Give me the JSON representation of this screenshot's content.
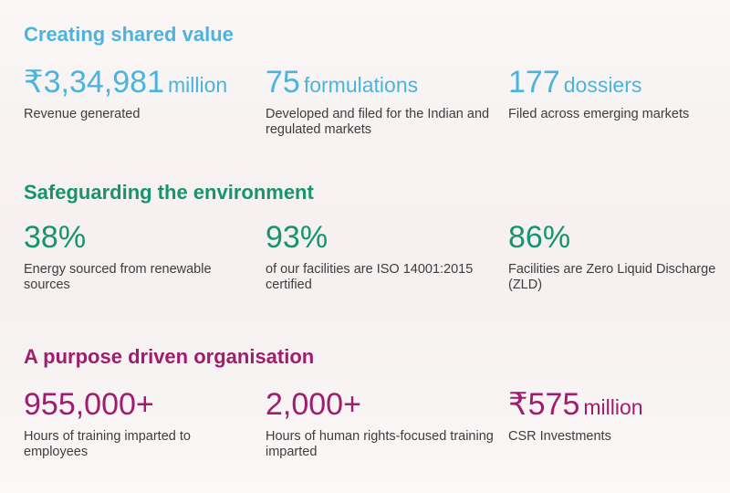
{
  "colors": {
    "shared_value": "#4bb4de",
    "environment": "#14956f",
    "purpose": "#a01c6e",
    "body_text": "#3d3d3d"
  },
  "sections": [
    {
      "title": "Creating shared value",
      "stats": [
        {
          "value": "₹3,34,981",
          "unit": "million",
          "desc": "Revenue generated"
        },
        {
          "value": "75",
          "unit": "formulations",
          "desc": "Developed and filed for the Indian and regulated markets"
        },
        {
          "value": "177",
          "unit": "dossiers",
          "desc": "Filed across emerging markets"
        }
      ]
    },
    {
      "title": "Safeguarding the environment",
      "stats": [
        {
          "value": "38%",
          "unit": "",
          "desc": "Energy sourced from renewable sources"
        },
        {
          "value": "93%",
          "unit": "",
          "desc": "of our facilities are ISO 14001:2015 certified"
        },
        {
          "value": "86%",
          "unit": "",
          "desc": "Facilities are Zero Liquid Discharge (ZLD)"
        }
      ]
    },
    {
      "title": "A purpose driven organisation",
      "stats": [
        {
          "value": "955,000+",
          "unit": "",
          "desc": "Hours of training imparted to employees"
        },
        {
          "value": "2,000+",
          "unit": "",
          "desc": "Hours of human rights-focused training imparted"
        },
        {
          "value": "₹575",
          "unit": "million",
          "desc": "CSR Investments"
        }
      ]
    }
  ]
}
